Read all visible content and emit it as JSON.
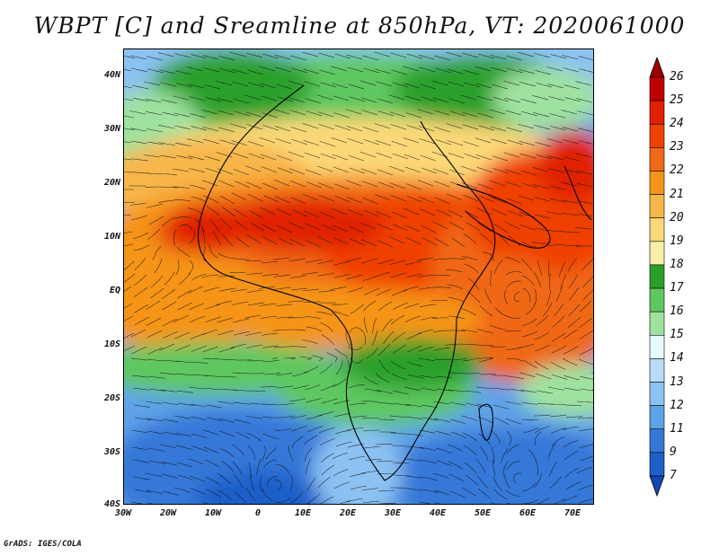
{
  "title": "WBPT [C] and Sreamline at 850hPa, VT: 2020061000",
  "credit": "GrADS: IGES/COLA",
  "map": {
    "lon_range": [
      -30,
      75
    ],
    "lat_range": [
      -40,
      45
    ],
    "lat_ticks": [
      "40N",
      "30N",
      "20N",
      "10N",
      "EQ",
      "10S",
      "20S",
      "30S",
      "40S"
    ],
    "lon_ticks": [
      "30W",
      "20W",
      "10W",
      "0",
      "10E",
      "20E",
      "30E",
      "40E",
      "50E",
      "60E",
      "70E"
    ]
  },
  "colorbar": {
    "labels": [
      "26",
      "25",
      "24",
      "23",
      "22",
      "21",
      "20",
      "19",
      "18",
      "17",
      "16",
      "15",
      "14",
      "13",
      "12",
      "11",
      "9",
      "7"
    ],
    "colors": [
      "#a00000",
      "#c00000",
      "#e02000",
      "#ef4000",
      "#f06818",
      "#f59418",
      "#f7b648",
      "#fbd878",
      "#f8f0a8",
      "#2aa02a",
      "#5fc75f",
      "#9fe29f",
      "#e6fbfb",
      "#b8dcf8",
      "#8cc2f2",
      "#5ea2e8",
      "#3478d8",
      "#1f5fc8",
      "#1246b4"
    ]
  }
}
